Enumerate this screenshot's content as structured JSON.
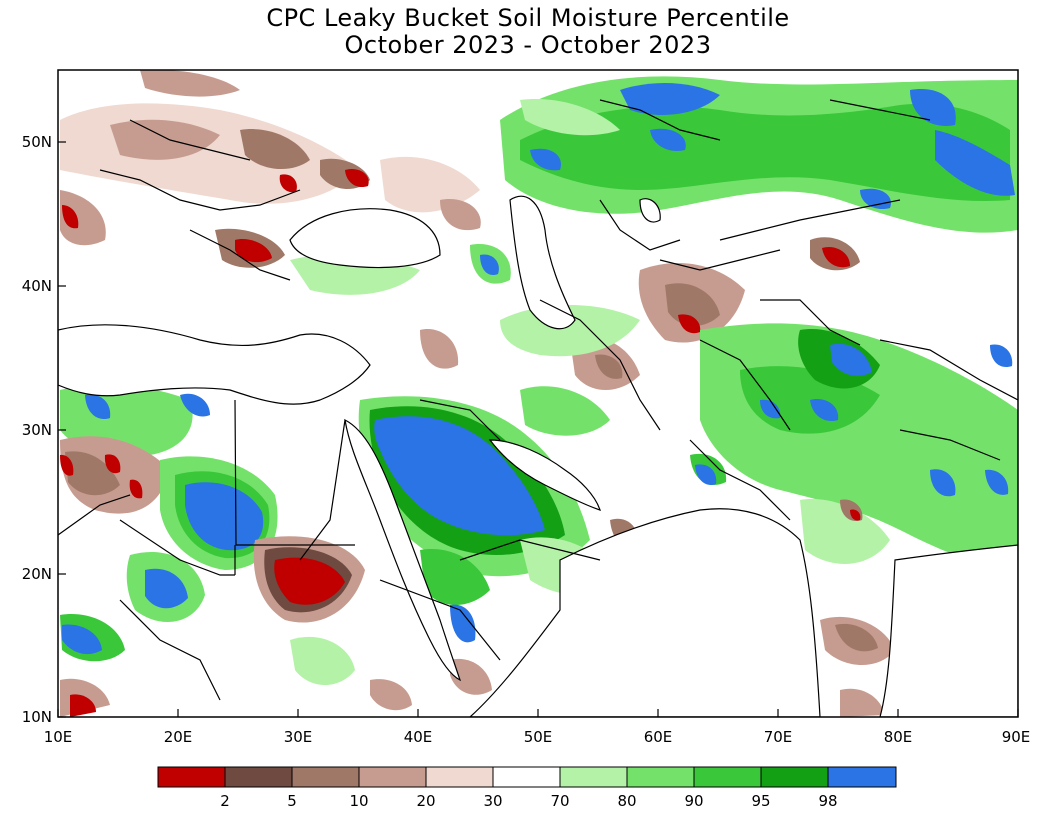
{
  "title": "CPC Leaky Bucket Soil Moisture Percentile",
  "subtitle": "October 2023 - October 2023",
  "map": {
    "lon_range": [
      10,
      90
    ],
    "lat_range": [
      10,
      55
    ],
    "x_ticks": [
      "10E",
      "20E",
      "30E",
      "40E",
      "50E",
      "60E",
      "70E",
      "80E",
      "90E"
    ],
    "y_ticks": [
      "10N",
      "20N",
      "30N",
      "40N",
      "50N"
    ]
  },
  "legend": {
    "colors": [
      "#c00000",
      "#6e4a40",
      "#a07868",
      "#c79c90",
      "#efd9d0",
      "#ffffff",
      "#b4f2a8",
      "#74e26a",
      "#3ac83a",
      "#14a014",
      "#2a74e6"
    ],
    "labels": [
      "2",
      "5",
      "10",
      "20",
      "30",
      "70",
      "80",
      "90",
      "95",
      "98"
    ]
  }
}
